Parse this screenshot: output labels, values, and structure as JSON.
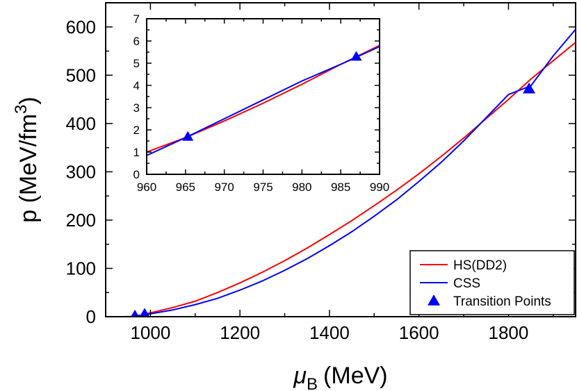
{
  "chart_data": [
    {
      "type": "line",
      "id": "main",
      "title": "",
      "xlabel_symbol": "μ",
      "xlabel_subscript": "B",
      "xlabel_unit": "(MeV)",
      "ylabel_text": "p (MeV/fm",
      "ylabel_sup": "3",
      "ylabel_close": ")",
      "xlim": [
        900,
        1950
      ],
      "ylim": [
        0,
        650
      ],
      "xticks": [
        1000,
        1200,
        1400,
        1600,
        1800
      ],
      "yticks": [
        0,
        100,
        200,
        300,
        400,
        500,
        600
      ],
      "grid": false,
      "legend_position": "bottom-right",
      "series": [
        {
          "name": "HS(DD2)",
          "color": "#ff0000",
          "x": [
            940,
            960,
            980,
            1000,
            1050,
            1100,
            1150,
            1200,
            1250,
            1300,
            1350,
            1400,
            1450,
            1500,
            1550,
            1600,
            1650,
            1700,
            1750,
            1800,
            1850,
            1900,
            1950
          ],
          "y": [
            0,
            0.5,
            3.5,
            8,
            19,
            32,
            50,
            70,
            92,
            116,
            142,
            170,
            199,
            230,
            262,
            296,
            332,
            370,
            410,
            450,
            492,
            530,
            568
          ]
        },
        {
          "name": "CSS",
          "color": "#0000ff",
          "x": [
            966,
            980,
            1000,
            1050,
            1100,
            1150,
            1200,
            1250,
            1300,
            1350,
            1400,
            1450,
            1500,
            1550,
            1600,
            1650,
            1700,
            1750,
            1800,
            1850,
            1900,
            1950
          ],
          "y": [
            1.5,
            3,
            6,
            14,
            25,
            38,
            55,
            74,
            96,
            120,
            147,
            176,
            208,
            242,
            280,
            320,
            364,
            412,
            460,
            478,
            540,
            595
          ]
        }
      ],
      "markers": {
        "name": "Transition Points",
        "color": "#0000ff",
        "shape": "triangle",
        "x": [
          965.3,
          987,
          1846
        ],
        "y": [
          1.7,
          5.3,
          472
        ]
      }
    },
    {
      "type": "line",
      "id": "inset",
      "title": "",
      "xlim": [
        960,
        990
      ],
      "ylim": [
        0,
        7
      ],
      "xticks": [
        960,
        965,
        970,
        975,
        980,
        985,
        990
      ],
      "yticks": [
        0,
        1,
        2,
        3,
        4,
        5,
        6,
        7
      ],
      "grid": false,
      "series": [
        {
          "name": "HS(DD2)",
          "color": "#ff0000",
          "x": [
            960,
            965,
            970,
            975,
            980,
            985,
            990
          ],
          "y": [
            1.0,
            1.65,
            2.4,
            3.2,
            4.05,
            4.95,
            5.8
          ]
        },
        {
          "name": "CSS",
          "color": "#0000ff",
          "x": [
            960,
            965,
            970,
            975,
            980,
            985,
            990
          ],
          "y": [
            0.85,
            1.65,
            2.5,
            3.35,
            4.2,
            4.95,
            5.75
          ]
        }
      ],
      "markers": {
        "name": "Transition Points",
        "color": "#0000ff",
        "shape": "triangle",
        "x": [
          965.3,
          987
        ],
        "y": [
          1.7,
          5.3
        ]
      }
    }
  ]
}
